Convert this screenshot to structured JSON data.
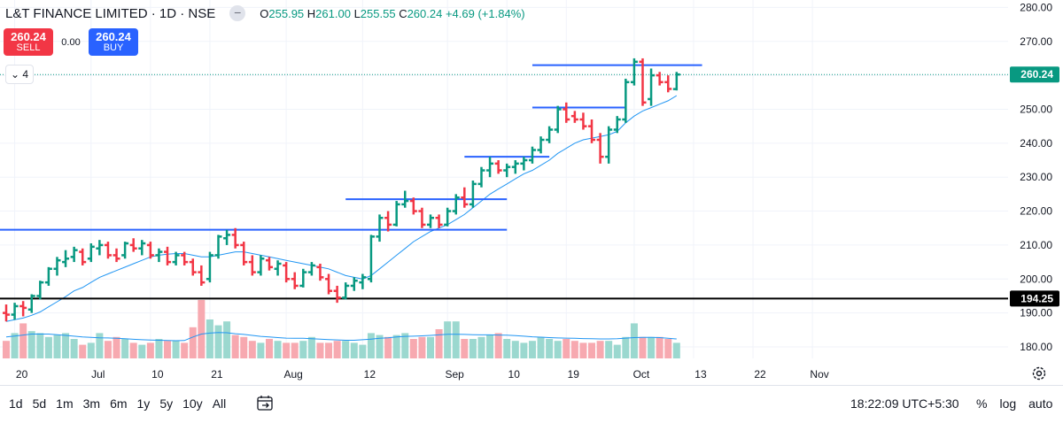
{
  "header": {
    "title": "L&T FINANCE LIMITED · 1D · NSE",
    "open_label": "O",
    "open": "255.95",
    "high_label": "H",
    "high": "261.00",
    "low_label": "L",
    "low": "255.55",
    "close_label": "C",
    "close": "260.24",
    "change": "+4.69 (+1.84%)"
  },
  "trade": {
    "sell_price": "260.24",
    "sell_label": "SELL",
    "spread": "0.00",
    "buy_price": "260.24",
    "buy_label": "BUY"
  },
  "indicators_toggle": "4",
  "toolbar": {
    "ranges": [
      "1d",
      "5d",
      "1m",
      "3m",
      "6m",
      "1y",
      "5y",
      "10y",
      "All"
    ],
    "clock": "18:22:09 UTC+5:30",
    "percent": "%",
    "log": "log",
    "auto": "auto"
  },
  "colors": {
    "up": "#089981",
    "down": "#f23645",
    "ma": "#2196f3",
    "level": "#2962ff",
    "support": "#000000"
  },
  "chart_data": {
    "type": "ohlc",
    "title": "L&T FINANCE LIMITED · 1D · NSE",
    "ylim": [
      176,
      280
    ],
    "y_ticks": [
      180,
      190,
      200,
      210,
      220,
      230,
      240,
      250,
      260,
      270,
      280
    ],
    "y_tick_labels": [
      "180.00",
      "190.00",
      "200.00",
      "210.00",
      "220.00",
      "230.00",
      "240.00",
      "250.00",
      "260.00",
      "270.00",
      "280.00"
    ],
    "x_tick_labels": [
      "20",
      "Jul",
      "10",
      "21",
      "Aug",
      "12",
      "Sep",
      "10",
      "19",
      "Oct",
      "13",
      "22",
      "Nov"
    ],
    "x_tick_index": [
      1,
      10,
      17,
      24,
      33,
      42,
      52,
      59,
      66,
      74,
      81,
      88,
      95
    ],
    "last_price": 260.24,
    "marked_level": 194.25,
    "bars": [
      [
        190,
        192.5,
        187.5,
        189.5
      ],
      [
        189.5,
        193,
        188,
        192
      ],
      [
        192,
        193.5,
        189,
        191.5
      ],
      [
        191,
        195.5,
        190,
        195
      ],
      [
        195,
        199.5,
        194,
        199
      ],
      [
        199,
        203.5,
        198,
        203
      ],
      [
        203,
        206.5,
        201,
        205.5
      ],
      [
        205,
        208.5,
        203.5,
        206
      ],
      [
        206.5,
        209.5,
        205,
        208.5
      ],
      [
        208,
        209,
        204,
        205
      ],
      [
        206,
        210.5,
        205,
        209.5
      ],
      [
        209,
        211.5,
        207,
        210
      ],
      [
        210,
        211,
        206,
        207
      ],
      [
        207,
        209,
        205,
        206
      ],
      [
        207,
        211,
        206,
        210.5
      ],
      [
        210,
        212,
        208,
        209
      ],
      [
        209,
        211.5,
        207,
        210.5
      ],
      [
        210,
        211,
        206,
        207
      ],
      [
        207,
        209,
        205,
        208
      ],
      [
        208,
        209.5,
        204,
        205
      ],
      [
        205,
        208,
        204,
        207
      ],
      [
        207,
        208,
        204,
        205
      ],
      [
        205,
        206,
        201,
        202
      ],
      [
        202,
        204,
        198,
        199
      ],
      [
        200,
        208,
        199,
        207
      ],
      [
        207,
        213,
        206,
        212.5
      ],
      [
        212,
        214.5,
        210,
        213
      ],
      [
        213,
        215,
        209,
        210
      ],
      [
        210,
        211,
        204,
        205
      ],
      [
        205,
        207,
        201,
        202
      ],
      [
        202,
        207,
        201,
        206
      ],
      [
        205.5,
        206.5,
        202.5,
        203.5
      ],
      [
        203,
        205.5,
        201,
        204.5
      ],
      [
        204,
        205,
        199,
        200
      ],
      [
        200,
        202,
        197,
        198
      ],
      [
        198,
        203,
        197.5,
        202
      ],
      [
        202,
        205,
        201,
        204
      ],
      [
        203.5,
        204.5,
        199.5,
        200.5
      ],
      [
        200,
        201.5,
        195.5,
        196.5
      ],
      [
        196.5,
        198,
        193,
        194.5
      ],
      [
        194.5,
        199,
        194,
        198
      ],
      [
        198,
        200.5,
        196.5,
        199.5
      ],
      [
        199,
        201.5,
        197,
        200.5
      ],
      [
        200,
        213,
        199,
        212.5
      ],
      [
        212.5,
        219,
        211,
        218
      ],
      [
        218,
        220,
        214,
        216
      ],
      [
        216,
        223,
        215.5,
        222
      ],
      [
        222,
        226,
        221,
        223
      ],
      [
        223,
        224,
        219,
        220
      ],
      [
        220,
        221,
        215,
        216
      ],
      [
        216,
        219,
        215,
        218
      ],
      [
        218,
        219,
        215,
        216
      ],
      [
        216,
        221,
        215.5,
        220
      ],
      [
        220,
        225,
        219,
        224
      ],
      [
        224,
        227,
        221,
        222
      ],
      [
        222,
        229,
        221,
        228
      ],
      [
        228,
        233,
        227,
        232
      ],
      [
        232,
        236,
        230,
        234
      ],
      [
        234,
        235,
        231,
        232
      ],
      [
        232,
        234,
        230,
        233
      ],
      [
        233,
        235,
        231,
        234
      ],
      [
        234,
        236,
        232,
        235
      ],
      [
        235,
        239,
        234,
        238
      ],
      [
        238,
        242,
        237,
        241
      ],
      [
        241,
        245,
        240,
        244
      ],
      [
        244,
        251,
        243,
        250
      ],
      [
        250,
        252,
        246,
        247
      ],
      [
        248,
        249.5,
        246,
        247
      ],
      [
        247,
        249,
        244,
        245
      ],
      [
        245,
        247,
        240,
        241
      ],
      [
        241,
        243,
        234,
        236
      ],
      [
        236,
        245,
        234,
        244
      ],
      [
        244,
        248,
        243,
        247
      ],
      [
        247,
        259,
        246,
        258
      ],
      [
        258,
        265,
        257,
        264
      ],
      [
        264,
        265,
        251,
        252
      ],
      [
        253,
        262,
        251,
        260
      ],
      [
        260,
        261,
        257,
        258
      ],
      [
        258,
        260,
        255,
        256
      ],
      [
        255.95,
        261,
        255.55,
        260.24
      ]
    ],
    "volume": [
      9,
      13,
      18,
      14,
      13,
      11,
      12,
      13,
      10,
      7,
      8,
      13,
      9,
      11,
      10,
      8,
      7,
      8,
      10,
      9,
      9,
      8,
      16,
      30,
      20,
      17,
      19,
      12,
      11,
      9,
      8,
      10,
      9,
      8,
      8,
      9,
      11,
      8,
      8,
      9,
      9,
      8,
      7,
      13,
      12,
      11,
      12,
      13,
      10,
      11,
      11,
      15,
      19,
      19,
      10,
      10,
      11,
      12,
      13,
      10,
      9,
      8,
      9,
      11,
      10,
      9,
      10,
      9,
      8,
      8,
      9,
      9,
      7,
      11,
      18,
      11,
      11,
      11,
      10,
      8
    ],
    "ma_volume": [
      11,
      11.5,
      12,
      12.5,
      12.5,
      12.5,
      12.2,
      11.8,
      11.4,
      11,
      10.8,
      10.6,
      10.5,
      10.3,
      10.1,
      9.8,
      9.6,
      9.4,
      9.3,
      9.2,
      9.1,
      9.2,
      11,
      12.5,
      13,
      13.3,
      13.2,
      12.7,
      12.3,
      11.8,
      11.3,
      11,
      10.7,
      10.4,
      10.3,
      10.3,
      10.1,
      9.9,
      9.7,
      9.5,
      9.3,
      9.3,
      9.6,
      9.9,
      10.3,
      10.6,
      11,
      11.3,
      11.4,
      11.6,
      11.8,
      12.1,
      12.4,
      12.4,
      12.3,
      12.2,
      12.1,
      12.1,
      12,
      11.9,
      11.7,
      11.4,
      11.1,
      10.9,
      10.7,
      10.5,
      10.4,
      10.3,
      10.2,
      10.1,
      10,
      10,
      10.1,
      10.4,
      10.7,
      10.8,
      10.8,
      10.7,
      10.3,
      10
    ],
    "ma_price": [
      187.5,
      188,
      188.5,
      189.3,
      190.3,
      191.8,
      193.3,
      194.8,
      196.5,
      197.5,
      199,
      200.5,
      201.5,
      202.5,
      203.5,
      204.5,
      205.5,
      206.5,
      207,
      207.3,
      207.5,
      207.5,
      207,
      206.5,
      206.5,
      207,
      207.5,
      208,
      208,
      207.5,
      207,
      206.5,
      206,
      205.5,
      205,
      204.5,
      204,
      203.5,
      203,
      202,
      201,
      200.5,
      200,
      201,
      203,
      205,
      207,
      209,
      211,
      212.5,
      214,
      215,
      216,
      217.5,
      219,
      221,
      223,
      225,
      226.5,
      228,
      229.5,
      231,
      232,
      233.5,
      235,
      237,
      238.5,
      240,
      241,
      241.5,
      242,
      242.5,
      243.5,
      246,
      248,
      249.5,
      250.5,
      251.5,
      252.5,
      254
    ],
    "levels": [
      {
        "value": 214.5,
        "from": -1,
        "to": 59
      },
      {
        "value": 223.5,
        "from": 40,
        "to": 59
      },
      {
        "value": 236,
        "from": 54,
        "to": 64
      },
      {
        "value": 250.5,
        "from": 62,
        "to": 73
      },
      {
        "value": 263,
        "from": 62,
        "to": 82
      }
    ]
  }
}
